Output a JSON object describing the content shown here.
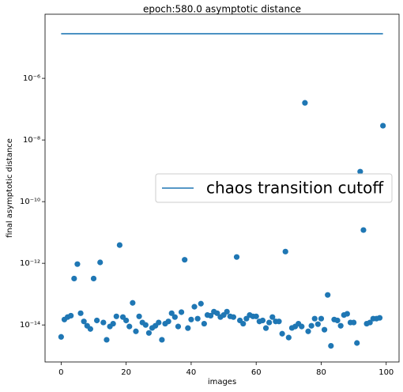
{
  "chart_data": {
    "type": "scatter",
    "title": "epoch:580.0 asymptotic distance",
    "xlabel": "images",
    "ylabel": "final asymptotic distance",
    "color": "#1f77b4",
    "x": [
      0,
      1,
      2,
      3,
      4,
      5,
      6,
      7,
      8,
      9,
      10,
      11,
      12,
      13,
      14,
      15,
      16,
      17,
      18,
      19,
      20,
      21,
      22,
      23,
      24,
      25,
      26,
      27,
      28,
      29,
      30,
      31,
      32,
      33,
      34,
      35,
      36,
      37,
      38,
      39,
      40,
      41,
      42,
      43,
      44,
      45,
      46,
      47,
      48,
      49,
      50,
      51,
      52,
      53,
      54,
      55,
      56,
      57,
      58,
      59,
      60,
      61,
      62,
      63,
      64,
      65,
      66,
      67,
      68,
      69,
      70,
      71,
      72,
      73,
      74,
      75,
      76,
      77,
      78,
      79,
      80,
      81,
      82,
      83,
      84,
      85,
      86,
      87,
      88,
      89,
      90,
      91,
      92,
      93,
      94,
      95,
      96,
      97,
      98,
      99
    ],
    "values": [
      4.1e-15,
      1.5e-14,
      1.8e-14,
      2e-14,
      3.2e-13,
      9.4e-13,
      2.4e-14,
      1.3e-14,
      9.4e-15,
      7.4e-15,
      3.2e-13,
      1.4e-14,
      1.07e-12,
      1.2e-14,
      3.3e-15,
      8.9e-15,
      1.1e-14,
      1.9e-14,
      3.9e-12,
      1.8e-14,
      1.4e-14,
      8.9e-15,
      5.2e-14,
      6.2e-15,
      1.9e-14,
      1.2e-14,
      1e-14,
      5.5e-15,
      8e-15,
      9.4e-15,
      1.2e-14,
      3.3e-15,
      1.1e-14,
      1.3e-14,
      2.4e-14,
      1.8e-14,
      8.9e-15,
      2.6e-14,
      1.3e-12,
      7.9e-15,
      1.5e-14,
      3.9e-14,
      1.6e-14,
      4.9e-14,
      1.1e-14,
      2.1e-14,
      2e-14,
      2.7e-14,
      2.4e-14,
      1.8e-14,
      2.1e-14,
      2.7e-14,
      1.9e-14,
      1.8e-14,
      1.6e-12,
      1.4e-14,
      1.1e-14,
      1.6e-14,
      2.1e-14,
      1.9e-14,
      1.9e-14,
      1.3e-14,
      1.4e-14,
      7.9e-15,
      1.2e-14,
      1.8e-14,
      1.3e-14,
      1.3e-14,
      5.2e-15,
      2.4e-12,
      3.9e-15,
      8e-15,
      8.9e-15,
      1.1e-14,
      8.9e-15,
      1.6e-07,
      6.2e-15,
      9.4e-15,
      1.6e-14,
      1.06e-14,
      1.6e-14,
      7e-15,
      9.4e-14,
      2.1e-15,
      1.5e-14,
      1.4e-14,
      9.4e-15,
      2.1e-14,
      2.3e-14,
      1.2e-14,
      1.2e-14,
      2.6e-15,
      9.4e-10,
      1.2e-11,
      1.1e-14,
      1.2e-14,
      1.6e-14,
      1.6e-14,
      1.7e-14,
      2.9e-08
    ],
    "cutoff": {
      "name": "chaos transition cutoff",
      "value": 2.8e-05,
      "x": [
        0,
        99
      ],
      "color": "#1f77b4"
    },
    "xlim": [
      -4.95,
      103.95
    ],
    "xticks": [
      0,
      20,
      40,
      60,
      80,
      100
    ],
    "ylim": [
      6.3e-16,
      0.00012
    ],
    "log_y": true,
    "yticks": [
      {
        "value": 1e-14,
        "label": "10⁻¹⁴"
      },
      {
        "value": 1e-12,
        "label": "10⁻¹²"
      },
      {
        "value": 1e-10,
        "label": "10⁻¹⁰"
      },
      {
        "value": 1e-08,
        "label": "10⁻⁸"
      },
      {
        "value": 1e-06,
        "label": "10⁻⁶"
      }
    ],
    "legend": "center right"
  }
}
